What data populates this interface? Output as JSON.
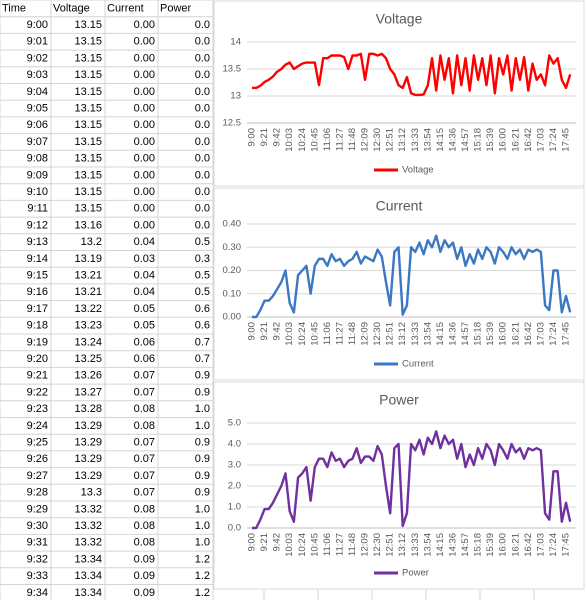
{
  "table": {
    "headers": [
      "Time",
      "Voltage",
      "Current",
      "Power"
    ],
    "rows": [
      [
        "9:00",
        "13.15",
        "0.00",
        "0.0"
      ],
      [
        "9:01",
        "13.15",
        "0.00",
        "0.0"
      ],
      [
        "9:02",
        "13.15",
        "0.00",
        "0.0"
      ],
      [
        "9:03",
        "13.15",
        "0.00",
        "0.0"
      ],
      [
        "9:04",
        "13.15",
        "0.00",
        "0.0"
      ],
      [
        "9:05",
        "13.15",
        "0.00",
        "0.0"
      ],
      [
        "9:06",
        "13.15",
        "0.00",
        "0.0"
      ],
      [
        "9:07",
        "13.15",
        "0.00",
        "0.0"
      ],
      [
        "9:08",
        "13.15",
        "0.00",
        "0.0"
      ],
      [
        "9:09",
        "13.15",
        "0.00",
        "0.0"
      ],
      [
        "9:10",
        "13.15",
        "0.00",
        "0.0"
      ],
      [
        "9:11",
        "13.15",
        "0.00",
        "0.0"
      ],
      [
        "9:12",
        "13.16",
        "0.00",
        "0.0"
      ],
      [
        "9:13",
        "13.2",
        "0.04",
        "0.5"
      ],
      [
        "9:14",
        "13.19",
        "0.03",
        "0.3"
      ],
      [
        "9:15",
        "13.21",
        "0.04",
        "0.5"
      ],
      [
        "9:16",
        "13.21",
        "0.04",
        "0.5"
      ],
      [
        "9:17",
        "13.22",
        "0.05",
        "0.6"
      ],
      [
        "9:18",
        "13.23",
        "0.05",
        "0.6"
      ],
      [
        "9:19",
        "13.24",
        "0.06",
        "0.7"
      ],
      [
        "9:20",
        "13.25",
        "0.06",
        "0.7"
      ],
      [
        "9:21",
        "13.26",
        "0.07",
        "0.9"
      ],
      [
        "9:22",
        "13.27",
        "0.07",
        "0.9"
      ],
      [
        "9:23",
        "13.28",
        "0.08",
        "1.0"
      ],
      [
        "9:24",
        "13.29",
        "0.08",
        "1.0"
      ],
      [
        "9:25",
        "13.29",
        "0.07",
        "0.9"
      ],
      [
        "9:26",
        "13.29",
        "0.07",
        "0.9"
      ],
      [
        "9:27",
        "13.29",
        "0.07",
        "0.9"
      ],
      [
        "9:28",
        "13.3",
        "0.07",
        "0.9"
      ],
      [
        "9:29",
        "13.32",
        "0.08",
        "1.0"
      ],
      [
        "9:30",
        "13.32",
        "0.08",
        "1.0"
      ],
      [
        "9:31",
        "13.32",
        "0.08",
        "1.0"
      ],
      [
        "9:32",
        "13.34",
        "0.09",
        "1.2"
      ],
      [
        "9:33",
        "13.34",
        "0.09",
        "1.2"
      ],
      [
        "9:34",
        "13.34",
        "0.09",
        "1.2"
      ]
    ]
  },
  "chart_data": [
    {
      "type": "line",
      "title": "Voltage",
      "legend": "bottom",
      "grid": true,
      "categories": [
        "9:00",
        null,
        null,
        "9:21",
        null,
        null,
        "9:42",
        null,
        null,
        "10:03",
        null,
        null,
        "10:24",
        null,
        null,
        "10:45",
        null,
        null,
        "11:06",
        null,
        null,
        "11:27",
        null,
        null,
        "11:48",
        null,
        null,
        "12:09",
        null,
        null,
        "12:30",
        null,
        null,
        "12:51",
        null,
        null,
        "13:12",
        null,
        null,
        "13:33",
        null,
        null,
        "13:54",
        null,
        null,
        "14:15",
        null,
        null,
        "14:36",
        null,
        null,
        "14:57",
        null,
        null,
        "15:18",
        null,
        null,
        "15:39",
        null,
        null,
        "16:00",
        null,
        null,
        "16:21",
        null,
        null,
        "16:42",
        null,
        null,
        "17:03",
        null,
        null,
        "17:24",
        null,
        null,
        "17:45",
        null
      ],
      "series": [
        {
          "name": "Voltage",
          "color": "#ff0000",
          "values": [
            13.15,
            13.15,
            13.19,
            13.26,
            13.3,
            13.36,
            13.45,
            13.5,
            13.58,
            13.62,
            13.5,
            13.55,
            13.6,
            13.62,
            13.62,
            13.62,
            13.2,
            13.7,
            13.7,
            13.75,
            13.75,
            13.75,
            13.72,
            13.5,
            13.75,
            13.75,
            13.78,
            13.3,
            13.78,
            13.78,
            13.75,
            13.78,
            13.7,
            13.5,
            13.4,
            13.2,
            13.15,
            13.35,
            13.05,
            13.02,
            13.02,
            13.03,
            13.2,
            13.7,
            13.1,
            13.75,
            13.3,
            13.7,
            13.05,
            13.75,
            13.2,
            13.7,
            13.1,
            13.75,
            13.3,
            13.7,
            13.2,
            13.75,
            13.05,
            13.7,
            13.4,
            13.75,
            13.1,
            13.7,
            13.3,
            13.72,
            13.1,
            13.6,
            13.3,
            13.4,
            13.2,
            13.75,
            13.6,
            13.7,
            13.3,
            13.15,
            13.4
          ]
        }
      ],
      "ylim": [
        12.5,
        14
      ],
      "yticks": [
        12.5,
        13,
        13.5,
        14
      ]
    },
    {
      "type": "line",
      "title": "Current",
      "legend": "bottom",
      "grid": true,
      "categories": [
        "9:00",
        null,
        null,
        "9:21",
        null,
        null,
        "9:42",
        null,
        null,
        "10:03",
        null,
        null,
        "10:24",
        null,
        null,
        "10:45",
        null,
        null,
        "11:06",
        null,
        null,
        "11:27",
        null,
        null,
        "11:48",
        null,
        null,
        "12:09",
        null,
        null,
        "12:30",
        null,
        null,
        "12:51",
        null,
        null,
        "13:12",
        null,
        null,
        "13:33",
        null,
        null,
        "13:54",
        null,
        null,
        "14:15",
        null,
        null,
        "14:36",
        null,
        null,
        "14:57",
        null,
        null,
        "15:18",
        null,
        null,
        "15:39",
        null,
        null,
        "16:00",
        null,
        null,
        "16:21",
        null,
        null,
        "16:42",
        null,
        null,
        "17:03",
        null,
        null,
        "17:24",
        null,
        null,
        "17:45",
        null
      ],
      "series": [
        {
          "name": "Current",
          "color": "#3a78c4",
          "values": [
            0,
            0,
            0.03,
            0.07,
            0.07,
            0.09,
            0.12,
            0.15,
            0.2,
            0.06,
            0.02,
            0.18,
            0.2,
            0.22,
            0.1,
            0.22,
            0.25,
            0.25,
            0.22,
            0.27,
            0.24,
            0.25,
            0.22,
            0.24,
            0.25,
            0.28,
            0.23,
            0.26,
            0.25,
            0.24,
            0.29,
            0.26,
            0.15,
            0.05,
            0.28,
            0.3,
            0.01,
            0.05,
            0.3,
            0.28,
            0.32,
            0.27,
            0.33,
            0.3,
            0.35,
            0.28,
            0.33,
            0.3,
            0.32,
            0.25,
            0.3,
            0.22,
            0.27,
            0.23,
            0.29,
            0.25,
            0.3,
            0.28,
            0.23,
            0.3,
            0.28,
            0.25,
            0.3,
            0.27,
            0.29,
            0.25,
            0.29,
            0.28,
            0.29,
            0.28,
            0.05,
            0.03,
            0.2,
            0.2,
            0.02,
            0.09,
            0.02
          ]
        }
      ],
      "ylim": [
        0,
        0.4
      ],
      "yticks": [
        {
          "value": 0,
          "label": "0.00"
        },
        {
          "value": 0.1,
          "label": "0.10"
        },
        {
          "value": 0.2,
          "label": "0.20"
        },
        {
          "value": 0.3,
          "label": "0.30"
        },
        {
          "value": 0.4,
          "label": "0.40"
        }
      ]
    },
    {
      "type": "line",
      "title": "Power",
      "legend": "bottom",
      "grid": true,
      "categories": [
        "9:00",
        null,
        null,
        "9:21",
        null,
        null,
        "9:42",
        null,
        null,
        "10:03",
        null,
        null,
        "10:24",
        null,
        null,
        "10:45",
        null,
        null,
        "11:06",
        null,
        null,
        "11:27",
        null,
        null,
        "11:48",
        null,
        null,
        "12:09",
        null,
        null,
        "12:30",
        null,
        null,
        "12:51",
        null,
        null,
        "13:12",
        null,
        null,
        "13:33",
        null,
        null,
        "13:54",
        null,
        null,
        "14:15",
        null,
        null,
        "14:36",
        null,
        null,
        "14:57",
        null,
        null,
        "15:18",
        null,
        null,
        "15:39",
        null,
        null,
        "16:00",
        null,
        null,
        "16:21",
        null,
        null,
        "16:42",
        null,
        null,
        "17:03",
        null,
        null,
        "17:24",
        null,
        null,
        "17:45",
        null
      ],
      "series": [
        {
          "name": "Power",
          "color": "#7030a0",
          "values": [
            0,
            0,
            0.4,
            0.9,
            0.9,
            1.2,
            1.6,
            2.0,
            2.6,
            0.8,
            0.3,
            2.4,
            2.6,
            2.9,
            1.3,
            2.9,
            3.3,
            3.3,
            2.9,
            3.6,
            3.2,
            3.3,
            2.9,
            3.2,
            3.3,
            3.8,
            3.1,
            3.4,
            3.4,
            3.2,
            3.9,
            3.5,
            2.0,
            0.7,
            3.8,
            4.0,
            0.1,
            0.7,
            4.0,
            3.7,
            4.2,
            3.5,
            4.3,
            4.0,
            4.6,
            3.8,
            4.4,
            4.0,
            4.2,
            3.3,
            4.0,
            2.9,
            3.5,
            3.0,
            3.8,
            3.3,
            4.0,
            3.7,
            3.0,
            4.0,
            3.7,
            3.3,
            4.0,
            3.6,
            3.8,
            3.3,
            3.8,
            3.7,
            3.8,
            3.7,
            0.7,
            0.4,
            2.7,
            2.7,
            0.3,
            1.2,
            0.3
          ]
        }
      ],
      "ylim": [
        0,
        5
      ],
      "yticks": [
        {
          "value": 0,
          "label": "0.0"
        },
        {
          "value": 1,
          "label": "1.0"
        },
        {
          "value": 2,
          "label": "2.0"
        },
        {
          "value": 3,
          "label": "3.0"
        },
        {
          "value": 4,
          "label": "4.0"
        },
        {
          "value": 5,
          "label": "5.0"
        }
      ]
    }
  ]
}
